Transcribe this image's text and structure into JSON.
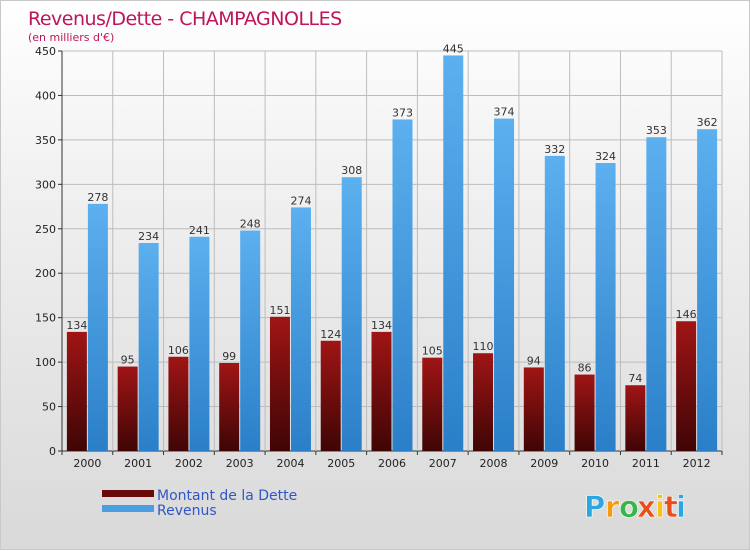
{
  "chart_data": {
    "type": "bar",
    "title": "Revenus/Dette - CHAMPAGNOLLES",
    "subtitle": "(en milliers d'€)",
    "categories": [
      "2000",
      "2001",
      "2002",
      "2003",
      "2004",
      "2005",
      "2006",
      "2007",
      "2008",
      "2009",
      "2010",
      "2011",
      "2012"
    ],
    "series": [
      {
        "name": "Montant de la Dette",
        "color": "#6b0a0a",
        "values": [
          134,
          95,
          106,
          99,
          151,
          124,
          134,
          105,
          110,
          94,
          86,
          74,
          146
        ]
      },
      {
        "name": "Revenus",
        "color": "#4a9fe0",
        "values": [
          278,
          234,
          241,
          248,
          274,
          308,
          373,
          445,
          374,
          332,
          324,
          353,
          362
        ]
      }
    ],
    "ylim": [
      0,
      450
    ],
    "yticks": [
      0,
      50,
      100,
      150,
      200,
      250,
      300,
      350,
      400,
      450
    ],
    "grid": true,
    "legend_position": "bottom-left"
  },
  "logo": {
    "letters": [
      "P",
      "r",
      "o",
      "x",
      "i",
      "t",
      "i"
    ],
    "colors": [
      "#2aa6e0",
      "#f39c12",
      "#39b54a",
      "#e94e1b",
      "#f7c21b",
      "#e94e1b",
      "#2aa6e0"
    ]
  }
}
